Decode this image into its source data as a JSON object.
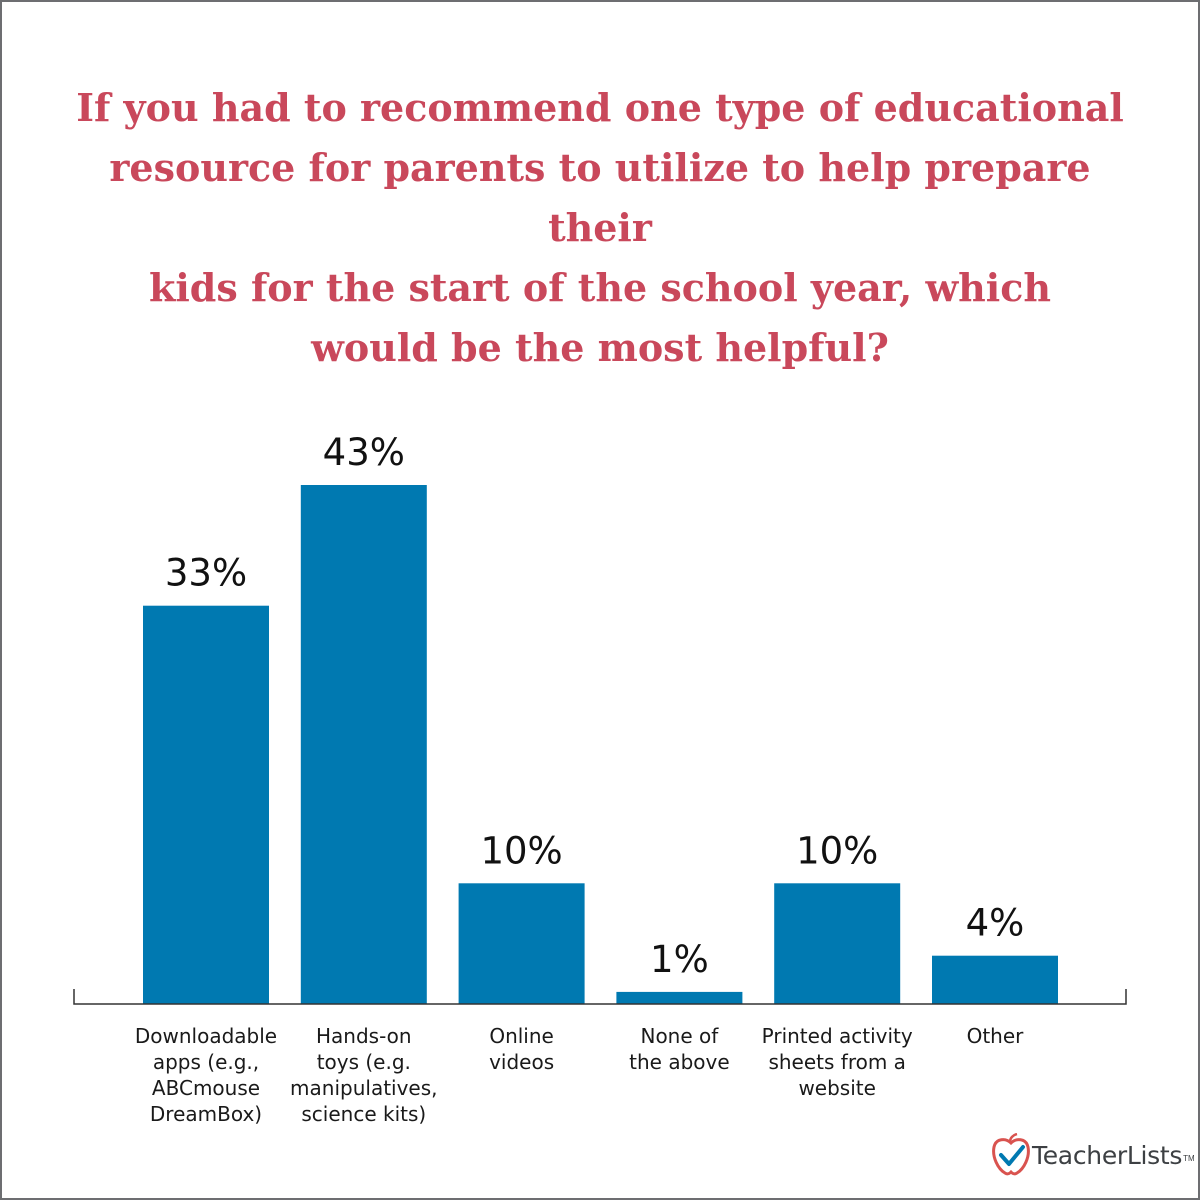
{
  "title_lines": [
    "If you had to recommend one type of educational",
    "resource for parents to utilize to help prepare their",
    "kids for the start of the school year, which",
    "would be the most helpful?"
  ],
  "chart_data": {
    "type": "bar",
    "title": "If you had to recommend one type of educational resource for parents to utilize to help prepare their kids for the start of the school year, which would be the most helpful?",
    "categories": [
      [
        "Downloadable",
        "apps (e.g.,",
        "ABCmouse",
        "DreamBox)"
      ],
      [
        "Hands-on",
        "toys (e.g.",
        "manipulatives,",
        "science kits)"
      ],
      [
        "Online",
        "videos"
      ],
      [
        "None of",
        "the above"
      ],
      [
        "Printed activity",
        "sheets from a",
        "website"
      ],
      [
        "Other"
      ]
    ],
    "values": [
      33,
      43,
      10,
      1,
      10,
      4
    ],
    "value_labels": [
      "33%",
      "43%",
      "10%",
      "1%",
      "10%",
      "4%"
    ],
    "ylim": [
      0,
      43
    ],
    "grid": false,
    "bar_color": "#0079b1"
  },
  "colors": {
    "title": "#c9485b",
    "border": "#6d6e71",
    "logo_red": "#d9534f"
  },
  "logo": {
    "icon": "apple-checkmark-icon",
    "text": "TeacherLists",
    "tm": "TM"
  }
}
